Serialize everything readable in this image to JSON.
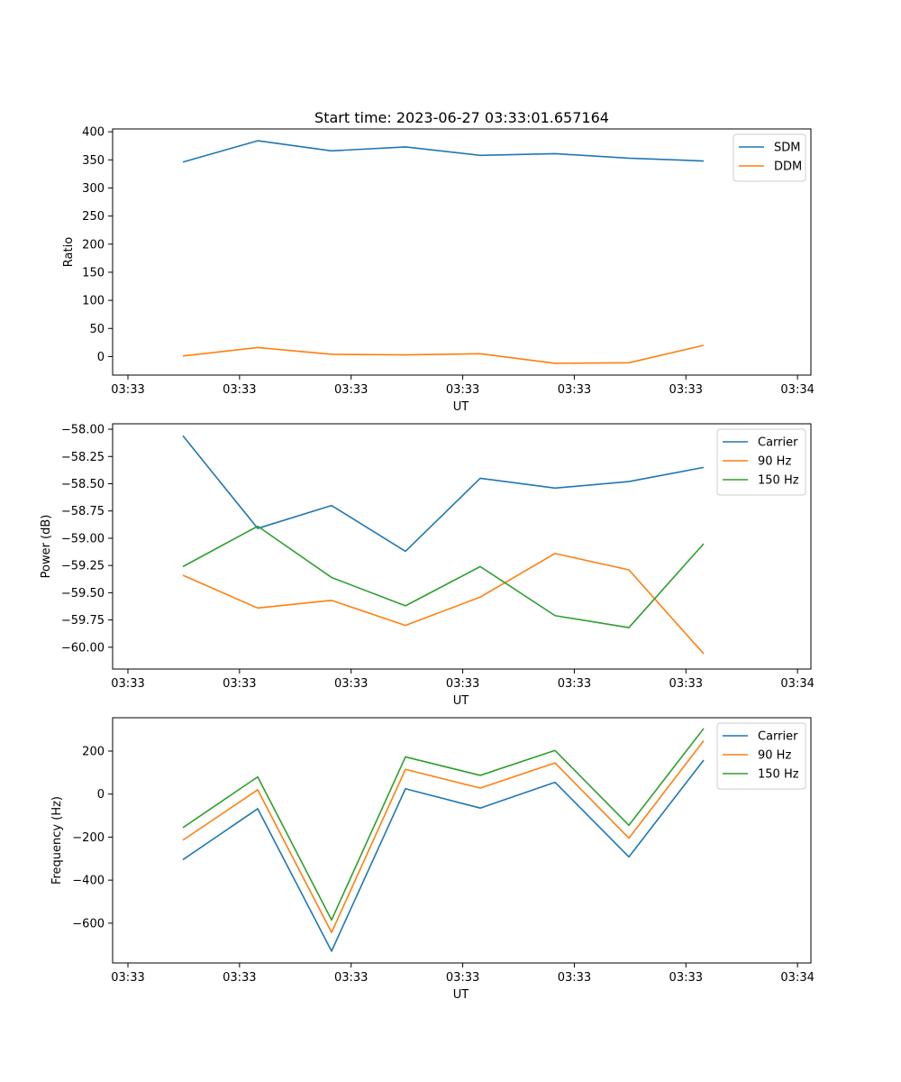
{
  "title": "Start time: 2023-06-27 03:33:01.657164",
  "colors": {
    "blue": "#1f77b4",
    "orange": "#ff7f0e",
    "green": "#2ca02c"
  },
  "chart_data": [
    {
      "type": "line",
      "xlabel": "UT",
      "ylabel": "Ratio",
      "x_tick_labels": [
        "03:33",
        "03:33",
        "03:33",
        "03:33",
        "03:33",
        "03:33",
        "03:34"
      ],
      "y_ticks": [
        0,
        50,
        100,
        150,
        200,
        250,
        300,
        350,
        400
      ],
      "y_tick_labels": [
        "0",
        "50",
        "100",
        "150",
        "200",
        "250",
        "300",
        "350",
        "400"
      ],
      "ylim": [
        -33,
        405
      ],
      "legend": "top-right",
      "series": [
        {
          "name": "SDM",
          "color": "#1f77b4",
          "values": [
            346,
            384,
            366,
            373,
            358,
            361,
            353,
            348
          ]
        },
        {
          "name": "DDM",
          "color": "#ff7f0e",
          "values": [
            1,
            16,
            4,
            3,
            5,
            -12,
            -11,
            20
          ]
        }
      ]
    },
    {
      "type": "line",
      "xlabel": "UT",
      "ylabel": "Power (dB)",
      "x_tick_labels": [
        "03:33",
        "03:33",
        "03:33",
        "03:33",
        "03:33",
        "03:33",
        "03:34"
      ],
      "y_ticks": [
        -60.0,
        -59.75,
        -59.5,
        -59.25,
        -59.0,
        -58.75,
        -58.5,
        -58.25,
        -58.0
      ],
      "y_tick_labels": [
        "−60.00",
        "−59.75",
        "−59.50",
        "−59.25",
        "−59.00",
        "−58.75",
        "−58.50",
        "−58.25",
        "−58.00"
      ],
      "ylim": [
        -60.2,
        -57.95
      ],
      "legend": "top-right",
      "series": [
        {
          "name": "Carrier",
          "color": "#1f77b4",
          "values": [
            -58.06,
            -58.91,
            -58.7,
            -59.12,
            -58.45,
            -58.54,
            -58.48,
            -58.35
          ]
        },
        {
          "name": "90 Hz",
          "color": "#ff7f0e",
          "values": [
            -59.34,
            -59.64,
            -59.57,
            -59.8,
            -59.54,
            -59.14,
            -59.29,
            -60.06
          ]
        },
        {
          "name": "150 Hz",
          "color": "#2ca02c",
          "values": [
            -59.26,
            -58.89,
            -59.36,
            -59.62,
            -59.26,
            -59.71,
            -59.82,
            -59.05
          ]
        }
      ]
    },
    {
      "type": "line",
      "xlabel": "UT",
      "ylabel": "Frequency (Hz)",
      "x_tick_labels": [
        "03:33",
        "03:33",
        "03:33",
        "03:33",
        "03:33",
        "03:33",
        "03:34"
      ],
      "y_ticks": [
        -600,
        -400,
        -200,
        0,
        200
      ],
      "y_tick_labels": [
        "−600",
        "−400",
        "−200",
        "0",
        "200"
      ],
      "ylim": [
        -785,
        355
      ],
      "legend": "top-right",
      "series": [
        {
          "name": "Carrier",
          "color": "#1f77b4",
          "values": [
            -305,
            -68,
            -730,
            25,
            -65,
            55,
            -292,
            158
          ]
        },
        {
          "name": "90 Hz",
          "color": "#ff7f0e",
          "values": [
            -214,
            20,
            -643,
            115,
            28,
            145,
            -205,
            248
          ]
        },
        {
          "name": "150 Hz",
          "color": "#2ca02c",
          "values": [
            -156,
            80,
            -585,
            173,
            87,
            203,
            -145,
            305
          ]
        }
      ]
    }
  ]
}
